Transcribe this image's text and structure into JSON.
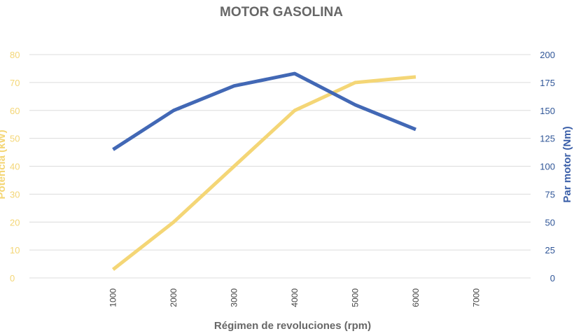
{
  "chart_data": {
    "type": "line",
    "title": "MOTOR GASOLINA",
    "xlabel": "Régimen de revoluciones (rpm)",
    "ylabel_left": "Potencia (kW)",
    "ylabel_right": "Par motor (Nm)",
    "x_ticks": [
      "1000",
      "2000",
      "3000",
      "4000",
      "5000",
      "6000",
      "7000"
    ],
    "y_left_ticks": [
      "0",
      "10",
      "20",
      "30",
      "40",
      "50",
      "60",
      "70",
      "80"
    ],
    "y_right_ticks": [
      "0",
      "25",
      "50",
      "75",
      "100",
      "125",
      "150",
      "175",
      "200"
    ],
    "ylim_left": [
      0,
      80
    ],
    "ylim_right": [
      0,
      200
    ],
    "xlim": [
      0,
      8000
    ],
    "grid": true,
    "series": [
      {
        "name": "Potencia (kW)",
        "axis": "left",
        "color": "#f4d676",
        "x": [
          1000,
          2000,
          3000,
          4000,
          5000,
          6000
        ],
        "values": [
          3,
          20,
          40,
          60,
          70,
          72
        ]
      },
      {
        "name": "Par motor (Nm)",
        "axis": "right",
        "color": "#4268b5",
        "x": [
          1000,
          2000,
          3000,
          4000,
          5000,
          6000
        ],
        "values": [
          115,
          150,
          172,
          183,
          155,
          133
        ]
      }
    ]
  }
}
